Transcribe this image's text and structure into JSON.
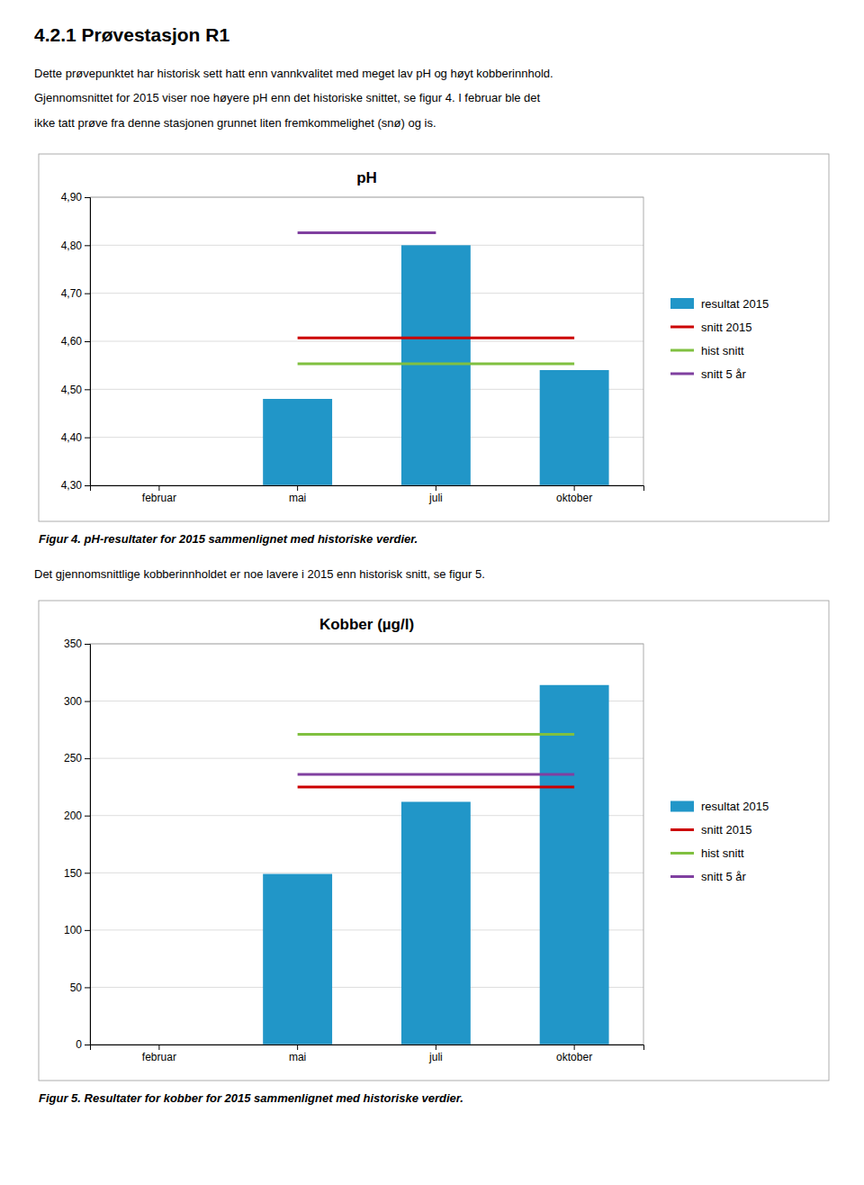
{
  "page_title": "4.2.1   Prøvestasjon R1",
  "page_text": [
    "Dette prøvepunktet har historisk sett hatt enn vannkvalitet med meget lav pH og høyt kobberinnhold.",
    "Gjennomsnittet for 2015 viser noe høyere pH enn det historiske snittet, se figur 4. I februar ble det",
    "ikke tatt prøve fra denne stasjonen grunnet liten fremkommelighet (snø) og is.",
    "Det gjennomsnittlige kobberinnholdet er noe lavere i 2015 enn historisk snitt, se figur 5."
  ],
  "chart_data": [
    {
      "type": "bar",
      "title": "pH",
      "caption": "Figur 4. pH-resultater for 2015 sammenlignet med historiske verdier.",
      "categories": [
        "februar",
        "mai",
        "juli",
        "oktober"
      ],
      "series": [
        {
          "name": "resultat 2015",
          "type": "bar",
          "color": "#2196c8",
          "values": [
            null,
            4.48,
            4.8,
            4.54
          ]
        },
        {
          "name": "snitt 2015",
          "type": "line",
          "color": "#cc0000",
          "values": [
            null,
            4.607,
            4.607,
            4.607
          ]
        },
        {
          "name": "hist snitt",
          "type": "line",
          "color": "#80c040",
          "values": [
            null,
            4.553,
            4.553,
            4.553
          ]
        },
        {
          "name": "snitt 5 år",
          "type": "line",
          "color": "#8040a0",
          "values": [
            null,
            4.826,
            4.826,
            null
          ]
        }
      ],
      "ylim": [
        4.3,
        4.9
      ],
      "yticks": [
        {
          "value": 4.3,
          "label": "4,30"
        },
        {
          "value": 4.4,
          "label": "4,40"
        },
        {
          "value": 4.5,
          "label": "4,50"
        },
        {
          "value": 4.6,
          "label": "4,60"
        },
        {
          "value": 4.7,
          "label": "4,70"
        },
        {
          "value": 4.8,
          "label": "4,80"
        },
        {
          "value": 4.9,
          "label": "4,90"
        }
      ],
      "grid": true,
      "legend": "right"
    },
    {
      "type": "bar",
      "title": "Kobber (µg/l)",
      "caption": "Figur 5. Resultater for kobber for 2015 sammenlignet med historiske verdier.",
      "categories": [
        "februar",
        "mai",
        "juli",
        "oktober"
      ],
      "series": [
        {
          "name": "resultat 2015",
          "type": "bar",
          "color": "#2196c8",
          "values": [
            null,
            149,
            212,
            314
          ]
        },
        {
          "name": "snitt 2015",
          "type": "line",
          "color": "#cc0000",
          "values": [
            null,
            225,
            225,
            225
          ]
        },
        {
          "name": "hist snitt",
          "type": "line",
          "color": "#80c040",
          "values": [
            null,
            271,
            271,
            271
          ]
        },
        {
          "name": "snitt 5 år",
          "type": "line",
          "color": "#8040a0",
          "values": [
            null,
            236,
            236,
            236
          ]
        }
      ],
      "ylim": [
        0,
        350
      ],
      "yticks": [
        0,
        50,
        100,
        150,
        200,
        250,
        300,
        350
      ],
      "grid": true,
      "legend": "right"
    }
  ]
}
